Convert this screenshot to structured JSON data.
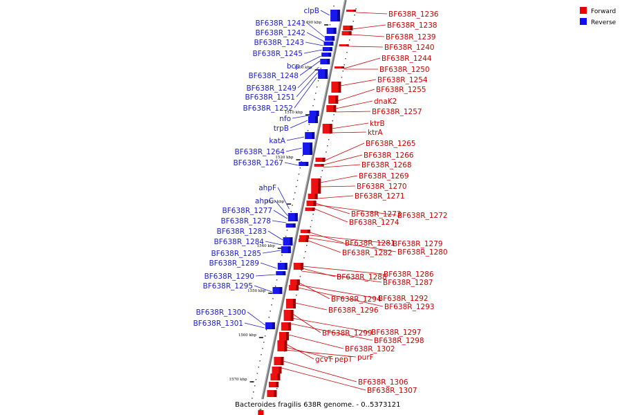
{
  "caption": "Bacteroides fragilis 638R genome. - 0..5373121",
  "legend": {
    "forward": {
      "label": "Forward",
      "color": "#ee0000"
    },
    "reverse": {
      "label": "Reverse",
      "color": "#1010ee"
    }
  },
  "ticks": [
    "1490 kbp",
    "1500 kbp",
    "1510 kbp",
    "1520 kbp",
    "1530 kbp",
    "1540 kbp",
    "1550 kbp",
    "1560 kbp",
    "1570 kbp"
  ],
  "reverse_labels": [
    "clpB",
    "BF638R_1241",
    "BF638R_1242",
    "BF638R_1243",
    "BF638R_1245",
    "bcp",
    "BF638R_1248",
    "BF638R_1249",
    "BF638R_1251",
    "BF638R_1252",
    "nfo",
    "trpB",
    "katA",
    "BF638R_1264",
    "BF638R_1267",
    "ahpF",
    "ahpC",
    "BF638R_1277",
    "BF638R_1278",
    "BF638R_1283",
    "BF638R_1284",
    "BF638R_1285",
    "BF638R_1289",
    "BF638R_1290",
    "BF638R_1295",
    "BF638R_1300",
    "BF638R_1301"
  ],
  "forward_labels": [
    "BF638R_1236",
    "BF638R_1238",
    "BF638R_1239",
    "BF638R_1240",
    "BF638R_1244",
    "BF638R_1250",
    "BF638R_1254",
    "BF638R_1255",
    "dnaK2",
    "BF638R_1257",
    "ktrB",
    "ktrA",
    "BF638R_1265",
    "BF638R_1266",
    "BF638R_1268",
    "BF638R_1269",
    "BF638R_1270",
    "BF638R_1271",
    "BF638R_1273",
    "BF638R_1272",
    "BF638R_1274",
    "BF638R_1281",
    "BF638R_1279",
    "BF638R_1280",
    "BF638R_1282",
    "BF638R_1286",
    "BF638R_1288",
    "BF638R_1287",
    "BF638R_1294",
    "BF638R_1292",
    "BF638R_1293",
    "BF638R_1296",
    "BF638R_1299",
    "BF638R_1297",
    "BF638R_1298",
    "BF638R_1302",
    "gcvT",
    "pepT",
    "purF",
    "BF638R_1306",
    "BF638R_1307"
  ]
}
